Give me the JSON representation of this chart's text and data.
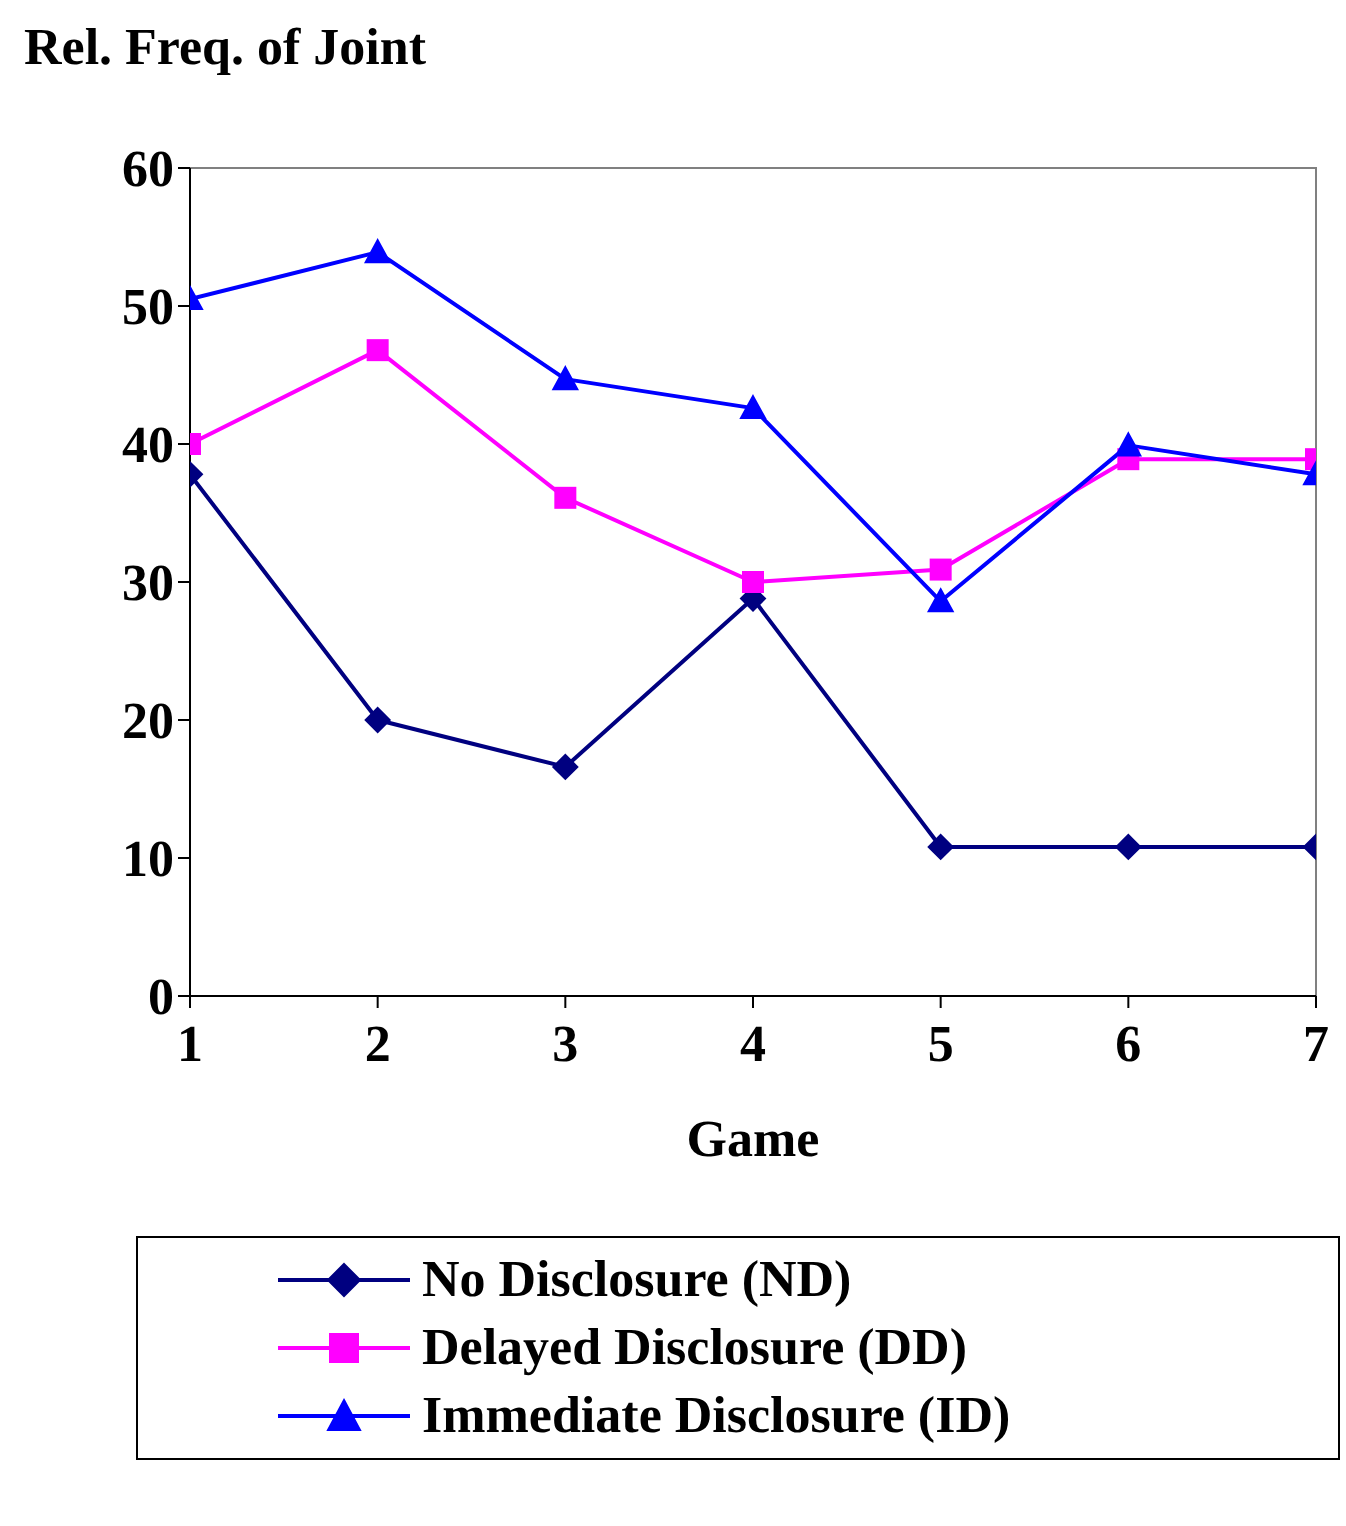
{
  "chart_data": {
    "type": "line",
    "title": "Rel. Freq. of Joint",
    "xlabel": "Game",
    "x": [
      1,
      2,
      3,
      4,
      5,
      6,
      7
    ],
    "xlim": [
      1,
      7
    ],
    "xticks": [
      1,
      2,
      3,
      4,
      5,
      6,
      7
    ],
    "ylim": [
      0,
      60
    ],
    "yticks": [
      0,
      10,
      20,
      30,
      40,
      50,
      60
    ],
    "grid": false,
    "legend": "bottom",
    "series": [
      {
        "name": "No Disclosure (ND)",
        "color": "#000080",
        "marker": "diamond",
        "values": [
          37.8,
          20,
          16.6,
          28.8,
          10.8,
          10.8,
          10.8
        ]
      },
      {
        "name": "Delayed Disclosure (DD)",
        "color": "#ff00ff",
        "marker": "square",
        "values": [
          40,
          46.8,
          36.1,
          30,
          30.9,
          38.9,
          38.9
        ]
      },
      {
        "name": "Immediate Disclosure (ID)",
        "color": "#0000ff",
        "marker": "triangle",
        "values": [
          50.5,
          53.9,
          44.7,
          42.6,
          28.6,
          39.9,
          37.8
        ]
      }
    ]
  }
}
